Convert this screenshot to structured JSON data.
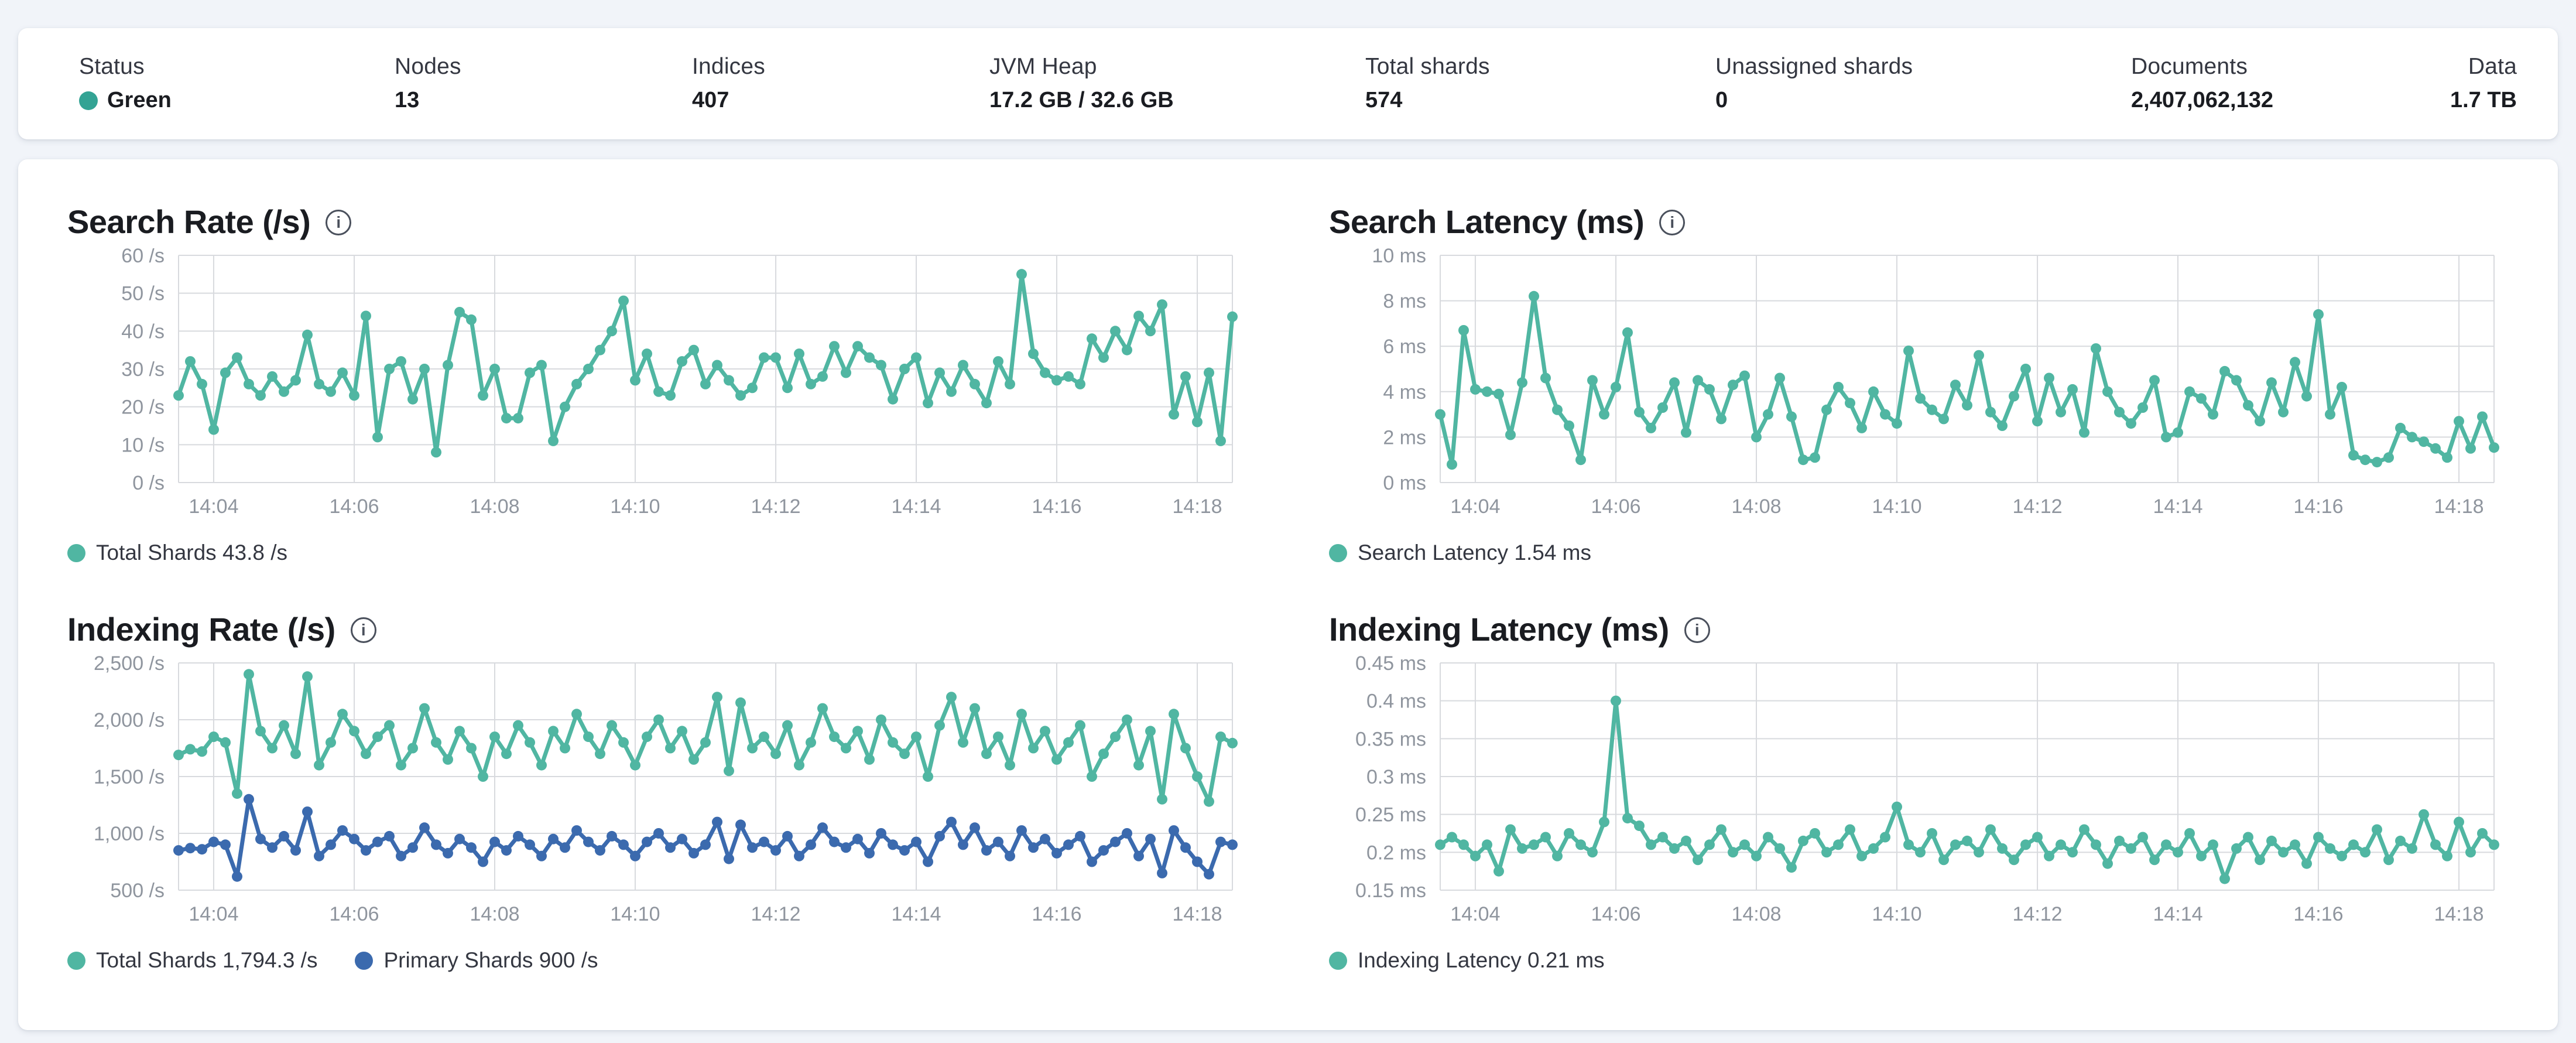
{
  "colors": {
    "teal": "#50b6a2",
    "blue": "#3b6aae",
    "status_green": "#33a394",
    "grid": "#d8dade",
    "tick_text": "#8f959e",
    "text_dark": "#1a1c21",
    "text_medium": "#343741",
    "page_bg": "#f1f4f9"
  },
  "status_bar": {
    "items": [
      {
        "label": "Status",
        "value": "Green",
        "has_dot": true
      },
      {
        "label": "Nodes",
        "value": "13"
      },
      {
        "label": "Indices",
        "value": "407"
      },
      {
        "label": "JVM Heap",
        "value": "17.2 GB / 32.6 GB"
      },
      {
        "label": "Total shards",
        "value": "574"
      },
      {
        "label": "Unassigned shards",
        "value": "0"
      },
      {
        "label": "Documents",
        "value": "2,407,062,132"
      },
      {
        "label": "Data",
        "value": "1.7 TB"
      }
    ]
  },
  "chart_data": [
    {
      "type": "line",
      "title": "Search Rate (/s)",
      "x_start": "14:03:30",
      "x_interval_s": 10,
      "x_ticks": [
        {
          "f": 0.0333,
          "label": "14:04"
        },
        {
          "f": 0.1667,
          "label": "14:06"
        },
        {
          "f": 0.3,
          "label": "14:08"
        },
        {
          "f": 0.4333,
          "label": "14:10"
        },
        {
          "f": 0.5667,
          "label": "14:12"
        },
        {
          "f": 0.7,
          "label": "14:14"
        },
        {
          "f": 0.8333,
          "label": "14:16"
        },
        {
          "f": 0.9667,
          "label": "14:18"
        }
      ],
      "ylim": [
        0,
        60
      ],
      "y_ticks": [
        {
          "v": 60,
          "label": "60 /s"
        },
        {
          "v": 50,
          "label": "50 /s"
        },
        {
          "v": 40,
          "label": "40 /s"
        },
        {
          "v": 30,
          "label": "30 /s"
        },
        {
          "v": 20,
          "label": "20 /s"
        },
        {
          "v": 10,
          "label": "10 /s"
        },
        {
          "v": 0,
          "label": "0 /s"
        }
      ],
      "grid": true,
      "legend_position": "bottom",
      "series": [
        {
          "name": "Total Shards",
          "current": "43.8 /s",
          "legend_label": "Total Shards 43.8 /s",
          "color_key": "teal",
          "values": [
            23,
            32,
            26,
            14,
            29,
            33,
            26,
            23,
            28,
            24,
            27,
            39,
            26,
            24,
            29,
            23,
            44,
            12,
            30,
            32,
            22,
            30,
            8,
            31,
            45,
            43,
            23,
            30,
            17,
            17,
            29,
            31,
            11,
            20,
            26,
            30,
            35,
            40,
            48,
            27,
            34,
            24,
            23,
            32,
            35,
            26,
            31,
            27,
            23,
            25,
            33,
            33,
            25,
            34,
            26,
            28,
            36,
            29,
            36,
            33,
            31,
            22,
            30,
            33,
            21,
            29,
            24,
            31,
            26,
            21,
            32,
            26,
            55,
            34,
            29,
            27,
            28,
            26,
            38,
            33,
            40,
            35,
            44,
            40,
            47,
            18,
            28,
            16,
            29,
            11,
            43.8
          ]
        }
      ]
    },
    {
      "type": "line",
      "title": "Search Latency (ms)",
      "x_start": "14:03:30",
      "x_interval_s": 10,
      "x_ticks": [
        {
          "f": 0.0333,
          "label": "14:04"
        },
        {
          "f": 0.1667,
          "label": "14:06"
        },
        {
          "f": 0.3,
          "label": "14:08"
        },
        {
          "f": 0.4333,
          "label": "14:10"
        },
        {
          "f": 0.5667,
          "label": "14:12"
        },
        {
          "f": 0.7,
          "label": "14:14"
        },
        {
          "f": 0.8333,
          "label": "14:16"
        },
        {
          "f": 0.9667,
          "label": "14:18"
        }
      ],
      "ylim": [
        0,
        10
      ],
      "y_ticks": [
        {
          "v": 10,
          "label": "10 ms"
        },
        {
          "v": 8,
          "label": "8 ms"
        },
        {
          "v": 6,
          "label": "6 ms"
        },
        {
          "v": 4,
          "label": "4 ms"
        },
        {
          "v": 2,
          "label": "2 ms"
        },
        {
          "v": 0,
          "label": "0 ms"
        }
      ],
      "grid": true,
      "legend_position": "bottom",
      "series": [
        {
          "name": "Search Latency",
          "current": "1.54 ms",
          "legend_label": "Search Latency 1.54 ms",
          "color_key": "teal",
          "values": [
            3.0,
            0.8,
            6.7,
            4.1,
            4.0,
            3.9,
            2.1,
            4.4,
            8.2,
            4.6,
            3.2,
            2.5,
            1.0,
            4.5,
            3.0,
            4.2,
            6.6,
            3.1,
            2.4,
            3.3,
            4.4,
            2.2,
            4.5,
            4.1,
            2.8,
            4.3,
            4.7,
            2.0,
            3.0,
            4.6,
            2.9,
            1.0,
            1.1,
            3.2,
            4.2,
            3.5,
            2.4,
            4.0,
            3.0,
            2.6,
            5.8,
            3.7,
            3.2,
            2.8,
            4.3,
            3.4,
            5.6,
            3.1,
            2.5,
            3.8,
            5.0,
            2.7,
            4.6,
            3.1,
            4.1,
            2.2,
            5.9,
            4.0,
            3.1,
            2.6,
            3.3,
            4.5,
            2.0,
            2.2,
            4.0,
            3.7,
            3.0,
            4.9,
            4.5,
            3.4,
            2.7,
            4.4,
            3.1,
            5.3,
            3.8,
            7.4,
            3.0,
            4.2,
            1.2,
            1.0,
            0.9,
            1.1,
            2.4,
            2.0,
            1.8,
            1.5,
            1.1,
            2.7,
            1.5,
            2.9,
            1.54
          ]
        }
      ]
    },
    {
      "type": "line",
      "title": "Indexing Rate (/s)",
      "x_start": "14:03:30",
      "x_interval_s": 10,
      "x_ticks": [
        {
          "f": 0.0333,
          "label": "14:04"
        },
        {
          "f": 0.1667,
          "label": "14:06"
        },
        {
          "f": 0.3,
          "label": "14:08"
        },
        {
          "f": 0.4333,
          "label": "14:10"
        },
        {
          "f": 0.5667,
          "label": "14:12"
        },
        {
          "f": 0.7,
          "label": "14:14"
        },
        {
          "f": 0.8333,
          "label": "14:16"
        },
        {
          "f": 0.9667,
          "label": "14:18"
        }
      ],
      "ylim": [
        500,
        2500
      ],
      "y_ticks": [
        {
          "v": 2500,
          "label": "2,500 /s"
        },
        {
          "v": 2000,
          "label": "2,000 /s"
        },
        {
          "v": 1500,
          "label": "1,500 /s"
        },
        {
          "v": 1000,
          "label": "1,000 /s"
        },
        {
          "v": 500,
          "label": "500 /s"
        }
      ],
      "grid": true,
      "legend_position": "bottom",
      "series": [
        {
          "name": "Total Shards",
          "current": "1,794.3 /s",
          "legend_label": "Total Shards 1,794.3 /s",
          "color_key": "teal",
          "values": [
            1690,
            1740,
            1720,
            1850,
            1800,
            1350,
            2400,
            1900,
            1750,
            1950,
            1700,
            2380,
            1600,
            1800,
            2050,
            1900,
            1700,
            1850,
            1950,
            1600,
            1750,
            2100,
            1800,
            1650,
            1900,
            1750,
            1500,
            1850,
            1700,
            1950,
            1800,
            1600,
            1900,
            1750,
            2050,
            1850,
            1700,
            1950,
            1800,
            1600,
            1850,
            2000,
            1750,
            1900,
            1650,
            1800,
            2200,
            1550,
            2150,
            1750,
            1850,
            1700,
            1950,
            1600,
            1800,
            2100,
            1850,
            1750,
            1900,
            1650,
            2000,
            1800,
            1700,
            1850,
            1500,
            1950,
            2200,
            1800,
            2100,
            1700,
            1850,
            1600,
            2050,
            1750,
            1900,
            1650,
            1800,
            1950,
            1500,
            1700,
            1850,
            2000,
            1600,
            1900,
            1300,
            2050,
            1750,
            1500,
            1280,
            1850,
            1794.3
          ]
        },
        {
          "name": "Primary Shards",
          "current": "900 /s",
          "legend_label": "Primary Shards 900 /s",
          "color_key": "blue",
          "values": [
            850,
            870,
            860,
            925,
            900,
            620,
            1300,
            950,
            875,
            975,
            850,
            1190,
            800,
            900,
            1025,
            950,
            850,
            925,
            975,
            800,
            875,
            1050,
            900,
            825,
            950,
            875,
            750,
            925,
            850,
            975,
            900,
            800,
            950,
            875,
            1025,
            925,
            850,
            975,
            900,
            800,
            925,
            1000,
            875,
            950,
            825,
            900,
            1100,
            775,
            1075,
            875,
            925,
            850,
            975,
            800,
            900,
            1050,
            925,
            875,
            950,
            825,
            1000,
            900,
            850,
            925,
            750,
            975,
            1100,
            900,
            1050,
            850,
            925,
            800,
            1025,
            875,
            950,
            825,
            900,
            975,
            750,
            850,
            925,
            1000,
            800,
            950,
            650,
            1025,
            875,
            750,
            640,
            925,
            900
          ]
        }
      ]
    },
    {
      "type": "line",
      "title": "Indexing Latency (ms)",
      "x_start": "14:03:30",
      "x_interval_s": 10,
      "x_ticks": [
        {
          "f": 0.0333,
          "label": "14:04"
        },
        {
          "f": 0.1667,
          "label": "14:06"
        },
        {
          "f": 0.3,
          "label": "14:08"
        },
        {
          "f": 0.4333,
          "label": "14:10"
        },
        {
          "f": 0.5667,
          "label": "14:12"
        },
        {
          "f": 0.7,
          "label": "14:14"
        },
        {
          "f": 0.8333,
          "label": "14:16"
        },
        {
          "f": 0.9667,
          "label": "14:18"
        }
      ],
      "ylim": [
        0.15,
        0.45
      ],
      "y_ticks": [
        {
          "v": 0.45,
          "label": "0.45 ms"
        },
        {
          "v": 0.4,
          "label": "0.4 ms"
        },
        {
          "v": 0.35,
          "label": "0.35 ms"
        },
        {
          "v": 0.3,
          "label": "0.3 ms"
        },
        {
          "v": 0.25,
          "label": "0.25 ms"
        },
        {
          "v": 0.2,
          "label": "0.2 ms"
        },
        {
          "v": 0.15,
          "label": "0.15 ms"
        }
      ],
      "grid": true,
      "legend_position": "bottom",
      "series": [
        {
          "name": "Indexing Latency",
          "current": "0.21 ms",
          "legend_label": "Indexing Latency 0.21 ms",
          "color_key": "teal",
          "values": [
            0.21,
            0.22,
            0.21,
            0.195,
            0.21,
            0.175,
            0.23,
            0.205,
            0.21,
            0.22,
            0.195,
            0.225,
            0.21,
            0.2,
            0.24,
            0.4,
            0.245,
            0.235,
            0.21,
            0.22,
            0.205,
            0.215,
            0.19,
            0.21,
            0.23,
            0.2,
            0.21,
            0.195,
            0.22,
            0.205,
            0.18,
            0.215,
            0.225,
            0.2,
            0.21,
            0.23,
            0.195,
            0.205,
            0.22,
            0.26,
            0.21,
            0.2,
            0.225,
            0.19,
            0.21,
            0.215,
            0.2,
            0.23,
            0.205,
            0.19,
            0.21,
            0.22,
            0.195,
            0.21,
            0.2,
            0.23,
            0.21,
            0.185,
            0.215,
            0.205,
            0.22,
            0.19,
            0.21,
            0.2,
            0.225,
            0.195,
            0.21,
            0.165,
            0.205,
            0.22,
            0.19,
            0.215,
            0.2,
            0.21,
            0.185,
            0.22,
            0.205,
            0.195,
            0.21,
            0.2,
            0.23,
            0.19,
            0.215,
            0.205,
            0.25,
            0.21,
            0.195,
            0.24,
            0.2,
            0.225,
            0.21
          ]
        }
      ]
    }
  ]
}
